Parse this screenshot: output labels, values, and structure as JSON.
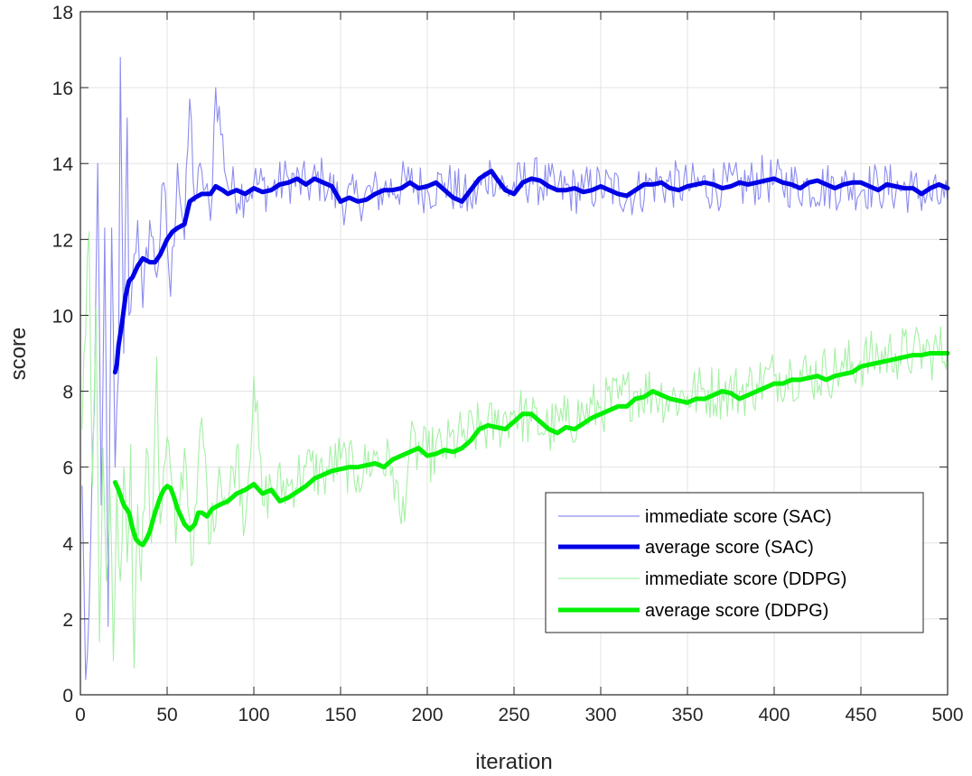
{
  "chart_data": {
    "type": "line",
    "xlabel": "iteration",
    "ylabel": "score",
    "xlim": [
      0,
      500
    ],
    "ylim": [
      0,
      18
    ],
    "xticks": [
      0,
      50,
      100,
      150,
      200,
      250,
      300,
      350,
      400,
      450,
      500
    ],
    "yticks": [
      0,
      2,
      4,
      6,
      8,
      10,
      12,
      14,
      16,
      18
    ],
    "grid": true,
    "legend_position": "lower-right",
    "series": [
      {
        "name": "immediate score (SAC)",
        "color": "#8c8cf0",
        "style": "thin",
        "noise": 0.65,
        "x": [
          1,
          3,
          5,
          8,
          10,
          12,
          14,
          16,
          18,
          20,
          22,
          23,
          25,
          27,
          28,
          30,
          33,
          36,
          40,
          44,
          48,
          52,
          56,
          60,
          63,
          66,
          70,
          75,
          78,
          85,
          95,
          100,
          110,
          120,
          130,
          140,
          150,
          160,
          175,
          190,
          200,
          210,
          225,
          237,
          245,
          260,
          275,
          290,
          300,
          320,
          330,
          350,
          370,
          380,
          395,
          400,
          420,
          440,
          460,
          480,
          500
        ],
        "y": [
          5.5,
          0.4,
          2.2,
          7.5,
          14.0,
          5.0,
          12.3,
          1.8,
          12.3,
          6.0,
          8.5,
          16.8,
          9.0,
          15.2,
          10.0,
          11.0,
          12.5,
          10.2,
          12.5,
          11.0,
          13.5,
          10.5,
          14.0,
          12.0,
          15.7,
          13.0,
          13.8,
          12.5,
          16.0,
          13.4,
          13.2,
          13.5,
          13.3,
          13.6,
          13.4,
          13.6,
          13.0,
          13.1,
          13.3,
          13.5,
          13.3,
          13.5,
          13.0,
          13.8,
          13.3,
          13.6,
          13.3,
          13.3,
          13.4,
          13.2,
          13.5,
          13.4,
          13.4,
          13.4,
          13.6,
          13.5,
          13.4,
          13.4,
          13.4,
          13.3,
          13.0
        ]
      },
      {
        "name": "average score (SAC)",
        "color": "#0000e6",
        "style": "thick",
        "x": [
          20,
          21,
          22,
          24,
          26,
          28,
          30,
          33,
          36,
          40,
          43,
          46,
          50,
          53,
          56,
          60,
          63,
          66,
          70,
          75,
          78,
          82,
          85,
          90,
          95,
          100,
          105,
          110,
          115,
          120,
          125,
          130,
          135,
          140,
          145,
          150,
          155,
          160,
          165,
          170,
          175,
          180,
          185,
          190,
          195,
          200,
          205,
          210,
          215,
          220,
          225,
          230,
          235,
          237,
          240,
          245,
          250,
          255,
          260,
          265,
          270,
          275,
          280,
          285,
          290,
          295,
          300,
          305,
          310,
          315,
          320,
          325,
          330,
          335,
          340,
          345,
          350,
          355,
          360,
          365,
          370,
          375,
          380,
          385,
          390,
          395,
          400,
          405,
          410,
          415,
          420,
          425,
          430,
          435,
          440,
          445,
          450,
          455,
          460,
          465,
          470,
          475,
          480,
          485,
          490,
          495,
          500
        ],
        "y": [
          8.5,
          8.7,
          9.2,
          9.8,
          10.5,
          10.9,
          11.0,
          11.3,
          11.5,
          11.4,
          11.4,
          11.6,
          12.0,
          12.2,
          12.3,
          12.4,
          13.0,
          13.1,
          13.2,
          13.2,
          13.4,
          13.3,
          13.2,
          13.3,
          13.2,
          13.35,
          13.25,
          13.3,
          13.45,
          13.5,
          13.6,
          13.45,
          13.6,
          13.5,
          13.4,
          13.0,
          13.1,
          13.0,
          13.05,
          13.2,
          13.3,
          13.3,
          13.35,
          13.5,
          13.35,
          13.4,
          13.5,
          13.3,
          13.1,
          13.0,
          13.3,
          13.6,
          13.75,
          13.8,
          13.6,
          13.3,
          13.2,
          13.5,
          13.6,
          13.55,
          13.4,
          13.3,
          13.3,
          13.35,
          13.25,
          13.3,
          13.4,
          13.3,
          13.2,
          13.15,
          13.3,
          13.45,
          13.45,
          13.5,
          13.35,
          13.3,
          13.4,
          13.45,
          13.5,
          13.45,
          13.35,
          13.4,
          13.5,
          13.45,
          13.5,
          13.55,
          13.6,
          13.5,
          13.45,
          13.35,
          13.5,
          13.55,
          13.45,
          13.35,
          13.45,
          13.5,
          13.5,
          13.4,
          13.3,
          13.45,
          13.4,
          13.35,
          13.35,
          13.2,
          13.35,
          13.45,
          13.35
        ]
      },
      {
        "name": "immediate score (DDPG)",
        "color": "#a6f0a6",
        "style": "thin",
        "noise": 0.75,
        "x": [
          1,
          3,
          5,
          7,
          9,
          11,
          13,
          15,
          17,
          19,
          21,
          23,
          25,
          27,
          29,
          31,
          33,
          35,
          38,
          41,
          44,
          46,
          50,
          55,
          60,
          65,
          70,
          75,
          80,
          85,
          90,
          95,
          100,
          105,
          110,
          120,
          130,
          140,
          150,
          160,
          170,
          180,
          185,
          190,
          200,
          210,
          220,
          230,
          240,
          250,
          260,
          270,
          280,
          290,
          300,
          310,
          320,
          330,
          340,
          350,
          360,
          370,
          380,
          390,
          400,
          410,
          420,
          430,
          440,
          450,
          460,
          470,
          480,
          490,
          500
        ],
        "y": [
          7.0,
          9.5,
          12.2,
          5.5,
          10.2,
          1.4,
          6.5,
          3.0,
          5.5,
          0.9,
          5.5,
          3.0,
          6.0,
          3.5,
          6.6,
          0.7,
          5.0,
          3.0,
          6.5,
          4.0,
          8.9,
          4.5,
          6.8,
          4.0,
          6.5,
          3.5,
          7.3,
          4.0,
          6.0,
          5.0,
          6.5,
          4.5,
          8.4,
          5.0,
          5.5,
          5.5,
          6.0,
          5.8,
          6.2,
          5.8,
          6.3,
          6.0,
          4.5,
          6.5,
          6.3,
          6.5,
          6.8,
          7.0,
          7.1,
          7.5,
          7.2,
          7.0,
          7.2,
          7.4,
          7.6,
          7.8,
          8.0,
          8.0,
          7.8,
          7.9,
          8.0,
          8.0,
          8.0,
          8.2,
          8.4,
          8.5,
          8.4,
          8.5,
          8.6,
          8.8,
          8.9,
          9.0,
          9.0,
          9.0,
          9.1
        ]
      },
      {
        "name": "average score (DDPG)",
        "color": "#00f000",
        "style": "thick",
        "x": [
          20,
          22,
          25,
          28,
          30,
          32,
          34,
          36,
          38,
          40,
          43,
          46,
          48,
          50,
          52,
          54,
          56,
          58,
          60,
          63,
          66,
          68,
          70,
          73,
          76,
          80,
          85,
          90,
          95,
          100,
          105,
          110,
          115,
          120,
          125,
          130,
          135,
          140,
          145,
          150,
          155,
          160,
          165,
          170,
          175,
          180,
          185,
          190,
          195,
          200,
          205,
          210,
          215,
          220,
          225,
          230,
          235,
          240,
          245,
          250,
          255,
          260,
          265,
          270,
          275,
          280,
          285,
          290,
          295,
          300,
          305,
          310,
          315,
          320,
          325,
          330,
          335,
          340,
          345,
          350,
          355,
          360,
          365,
          370,
          375,
          380,
          385,
          390,
          395,
          400,
          405,
          410,
          415,
          420,
          425,
          430,
          435,
          440,
          445,
          450,
          455,
          460,
          465,
          470,
          475,
          480,
          485,
          490,
          495,
          500
        ],
        "y": [
          5.6,
          5.4,
          5.0,
          4.8,
          4.4,
          4.1,
          4.0,
          3.95,
          4.1,
          4.3,
          4.8,
          5.2,
          5.4,
          5.5,
          5.45,
          5.2,
          4.9,
          4.7,
          4.5,
          4.35,
          4.5,
          4.8,
          4.8,
          4.7,
          4.9,
          5.0,
          5.1,
          5.3,
          5.4,
          5.55,
          5.3,
          5.4,
          5.1,
          5.2,
          5.35,
          5.5,
          5.7,
          5.8,
          5.9,
          5.95,
          6.0,
          6.0,
          6.05,
          6.1,
          6.0,
          6.2,
          6.3,
          6.4,
          6.5,
          6.3,
          6.35,
          6.45,
          6.4,
          6.5,
          6.7,
          7.0,
          7.1,
          7.05,
          7.0,
          7.2,
          7.4,
          7.4,
          7.2,
          7.0,
          6.9,
          7.05,
          7.0,
          7.15,
          7.3,
          7.4,
          7.5,
          7.6,
          7.6,
          7.8,
          7.85,
          8.0,
          7.9,
          7.8,
          7.75,
          7.7,
          7.8,
          7.8,
          7.9,
          8.0,
          7.95,
          7.8,
          7.9,
          8.0,
          8.1,
          8.2,
          8.2,
          8.3,
          8.3,
          8.35,
          8.4,
          8.3,
          8.4,
          8.45,
          8.5,
          8.65,
          8.7,
          8.75,
          8.8,
          8.85,
          8.9,
          8.95,
          8.95,
          9.0,
          9.0,
          9.0
        ]
      }
    ]
  }
}
